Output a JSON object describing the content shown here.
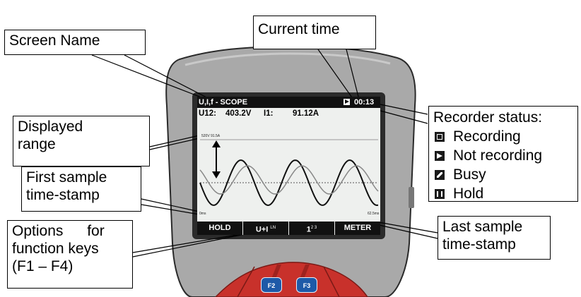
{
  "callouts": {
    "screen_name": "Screen Name",
    "current_time": "Current time",
    "displayed_range": [
      "Displayed",
      "range"
    ],
    "first_sample": [
      "First sample",
      "time-stamp"
    ],
    "options": [
      "Options for",
      "function keys",
      "(F1 – F4)"
    ],
    "last_sample": [
      "Last sample",
      "time-stamp"
    ]
  },
  "recorder_status": {
    "title": "Recorder status:",
    "items": [
      {
        "icon": "recording-icon",
        "label": "Recording"
      },
      {
        "icon": "not-recording-icon",
        "label": "Not recording"
      },
      {
        "icon": "busy-icon",
        "label": "Busy"
      },
      {
        "icon": "hold-icon",
        "label": "Hold"
      }
    ]
  },
  "lcd": {
    "screen_name": "U,I,f - SCOPE",
    "time": "00:13",
    "meas_u_label": "U12:",
    "meas_u_value": "403.2V",
    "meas_i_label": "I1:",
    "meas_i_value": "91.12A",
    "range_label": "520V 91.5A",
    "first_time": "0ms",
    "last_time": "62.5ms",
    "keys": [
      {
        "label": "HOLD",
        "sup": ""
      },
      {
        "label": "U+I",
        "sup": "LN"
      },
      {
        "label": "1",
        "sup": "2 3"
      },
      {
        "label": "METER",
        "sup": ""
      }
    ]
  },
  "buttons": {
    "f2": "F2",
    "f3": "F3"
  },
  "colors": {
    "device_grey": "#a9a9a9",
    "device_red": "#c8312b",
    "key_blue": "#1e5aa8"
  }
}
